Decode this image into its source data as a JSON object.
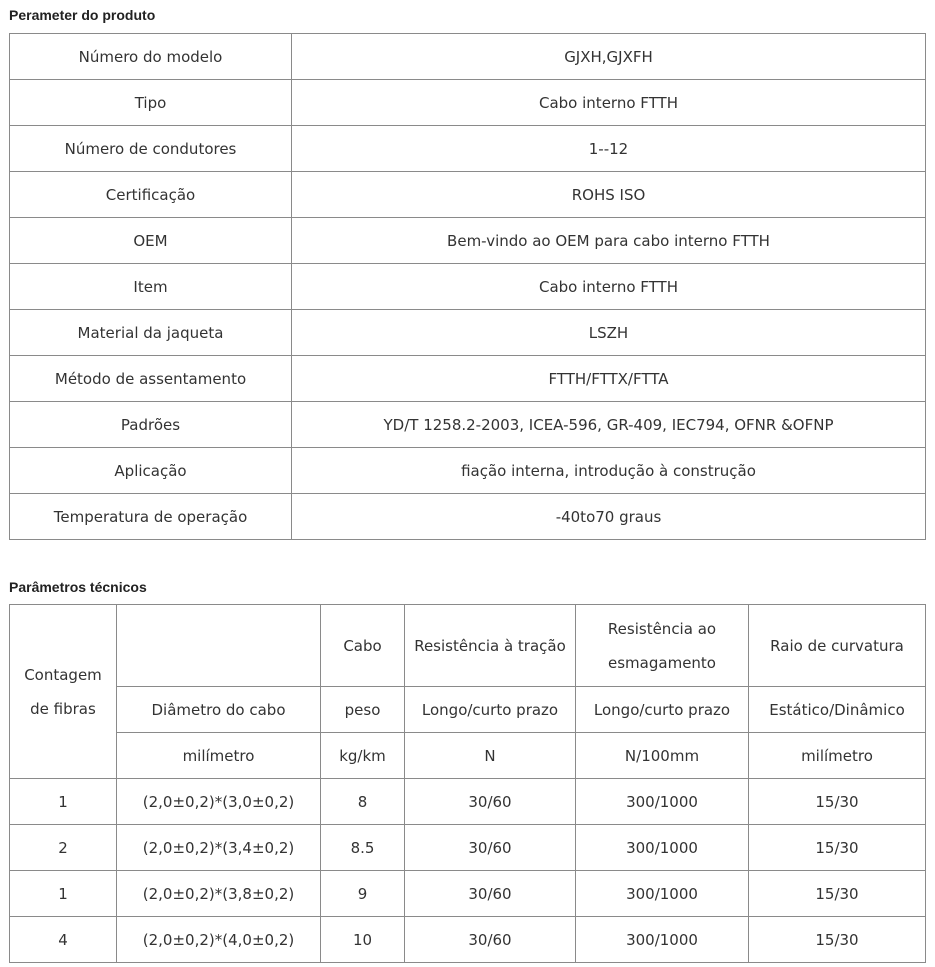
{
  "product": {
    "heading": "Perameter do produto",
    "rows": [
      [
        "Número do modelo",
        "GJXH,GJXFH"
      ],
      [
        "Tipo",
        "Cabo interno FTTH"
      ],
      [
        "Número de condutores",
        "1--12"
      ],
      [
        "Certificação",
        "ROHS ISO"
      ],
      [
        "OEM",
        "Bem-vindo ao OEM para cabo interno FTTH"
      ],
      [
        "Item",
        "Cabo interno FTTH"
      ],
      [
        "Material da jaqueta",
        "LSZH"
      ],
      [
        "Método de assentamento",
        "FTTH/FTTX/FTTA"
      ],
      [
        "Padrões",
        "YD/T 1258.2-2003, ICEA-596, GR-409, IEC794, OFNR &OFNP"
      ],
      [
        "Aplicação",
        "fiação interna, introdução à construção"
      ],
      [
        "Temperatura de operação",
        "-40to70 graus"
      ]
    ]
  },
  "tech": {
    "heading": "Parâmetros técnicos",
    "header": {
      "fiber_count": "Contagem de fibras",
      "row1": [
        "",
        "Cabo",
        "Resistência à tração",
        "Resistência ao esmagamento",
        "Raio de curvatura"
      ],
      "row2": [
        "Diâmetro do cabo",
        "peso",
        "Longo/curto prazo",
        "Longo/curto prazo",
        "Estático/Dinâmico"
      ],
      "row3": [
        "milímetro",
        "kg/km",
        "N",
        "N/100mm",
        "milímetro"
      ]
    },
    "rows": [
      [
        "1",
        "(2,0±0,2)*(3,0±0,2)",
        "8",
        "30/60",
        "300/1000",
        "15/30"
      ],
      [
        "2",
        "(2,0±0,2)*(3,4±0,2)",
        "8.5",
        "30/60",
        "300/1000",
        "15/30"
      ],
      [
        "1",
        "(2,0±0,2)*(3,8±0,2)",
        "9",
        "30/60",
        "300/1000",
        "15/30"
      ],
      [
        "4",
        "(2,0±0,2)*(4,0±0,2)",
        "10",
        "30/60",
        "300/1000",
        "15/30"
      ]
    ]
  }
}
